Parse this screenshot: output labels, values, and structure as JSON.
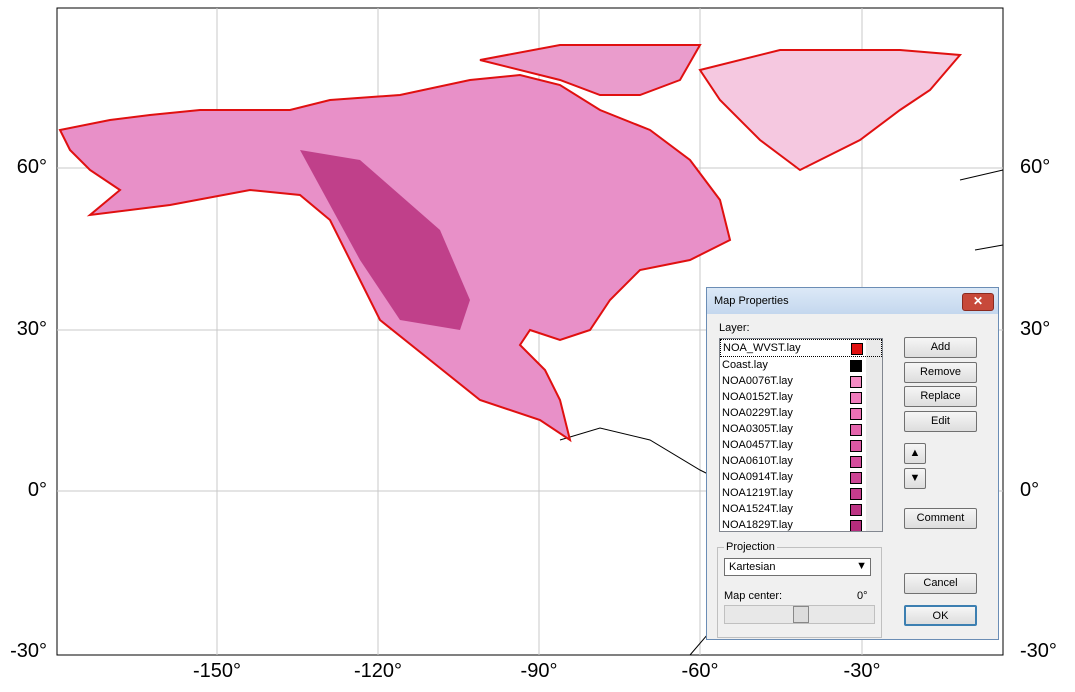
{
  "map": {
    "lat_labels_left": [
      "60°",
      "30°",
      "0°",
      "-30°"
    ],
    "lat_labels_right": [
      "60°",
      "30°",
      "0°",
      "-30°"
    ],
    "lon_labels": [
      "-150°",
      "-120°",
      "-90°",
      "-60°",
      "-30°"
    ]
  },
  "dialog": {
    "title": "Map Properties",
    "layer_label": "Layer:",
    "layers": [
      {
        "name": "NOA_WVST.lay",
        "color": "#e01010"
      },
      {
        "name": "Coast.lay",
        "color": "#000000"
      },
      {
        "name": "NOA0076T.lay",
        "color": "#f48cc4"
      },
      {
        "name": "NOA0152T.lay",
        "color": "#f07cbc"
      },
      {
        "name": "NOA0229T.lay",
        "color": "#ec70b4"
      },
      {
        "name": "NOA0305T.lay",
        "color": "#e464ac"
      },
      {
        "name": "NOA0457T.lay",
        "color": "#dc58a4"
      },
      {
        "name": "NOA0610T.lay",
        "color": "#d44c9c"
      },
      {
        "name": "NOA0914T.lay",
        "color": "#cc4494"
      },
      {
        "name": "NOA1219T.lay",
        "color": "#c43c8c"
      },
      {
        "name": "NOA1524T.lay",
        "color": "#bc3484"
      },
      {
        "name": "NOA1829T.lay",
        "color": "#b42c7c"
      }
    ],
    "buttons": {
      "add": "Add",
      "remove": "Remove",
      "replace": "Replace",
      "edit": "Edit",
      "comment": "Comment",
      "cancel": "Cancel",
      "ok": "OK"
    },
    "projection_label": "Projection",
    "projection": "Kartesian",
    "map_center_label": "Map center:",
    "map_center_value": "0°"
  }
}
